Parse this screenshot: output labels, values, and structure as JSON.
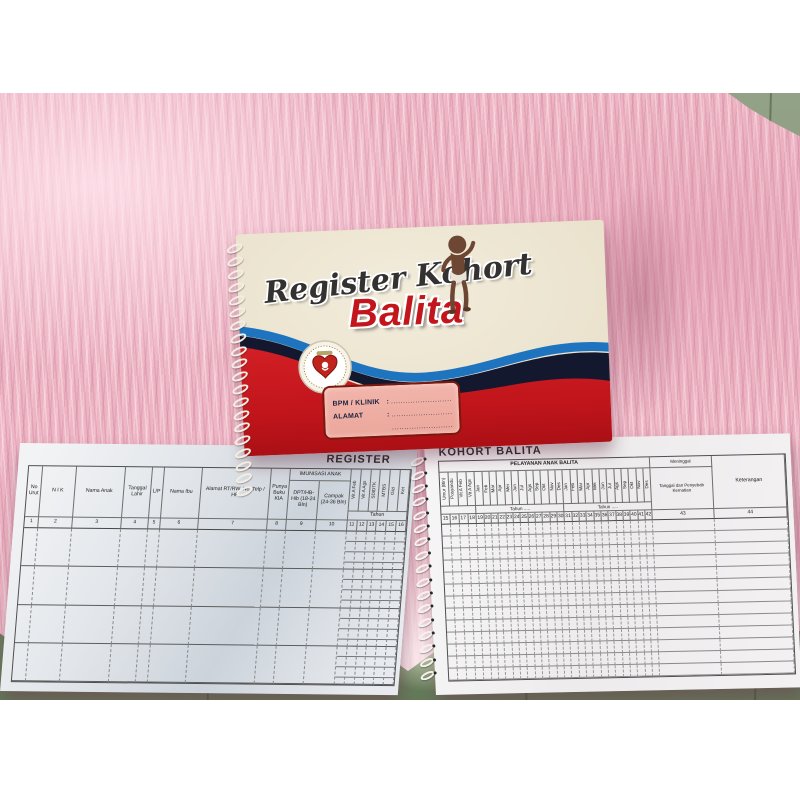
{
  "cover": {
    "script_title": "Register Kohort",
    "main_title": "Balita",
    "form": {
      "row1_label": "BPM / KLINIK",
      "row2_label": "ALAMAT",
      "colon": ":",
      "dots1": "...........................................",
      "dots2": "...........................................",
      "dots3": "..........................................."
    }
  },
  "left_page": {
    "title": "REGISTER",
    "columns": [
      "No Urut",
      "N I K",
      "Nama Anak",
      "Tanggal Lahir",
      "L/P",
      "Nama Ibu",
      "Alamat RT/RW, No. Telp / HP",
      "Punya Buku KIA"
    ],
    "group_label": "IMUNISASI ANAK",
    "sub_columns": [
      "DPT/HB-Hib (18-24 Bln)",
      "Campak (24-36 Bln)"
    ],
    "rotated_columns": [
      "Vit A Feb",
      "Vit A Ags",
      "SDIDTK",
      "MTBS",
      "Gizi",
      "Ket"
    ],
    "tahun_label": "Tahun",
    "column_numbers": [
      "1",
      "2",
      "3",
      "4",
      "5",
      "6",
      "7",
      "8",
      "9",
      "10",
      "11",
      "12",
      "13",
      "14",
      "15",
      "16"
    ],
    "body_rows": 4
  },
  "right_page": {
    "title": "KOHORT BALITA",
    "group_label": "PELAYANAN ANAK BALITA",
    "meninggal_label": "Meninggal",
    "death_label": "Tanggal dan Penyebab Kematian",
    "keterangan_label": "Keterangan",
    "lead_columns": [
      "Umur (Bln)",
      "Posyandu",
      "Vit A Feb",
      "Vit A Ags"
    ],
    "months": [
      "Jan",
      "Feb",
      "Mar",
      "Apr",
      "Mei",
      "Jun",
      "Jul",
      "Ags",
      "Sep",
      "Okt",
      "Nov",
      "Des"
    ],
    "tahun_label": "Tahun .....",
    "first_number": 15,
    "body_rows": 13
  },
  "colors": {
    "cover_red": "#c3161c",
    "wave_blue": "#1e74bf",
    "wave_navy": "#14182e",
    "fur_pink": "#eeb5c4",
    "floor_green": "#74896a"
  }
}
